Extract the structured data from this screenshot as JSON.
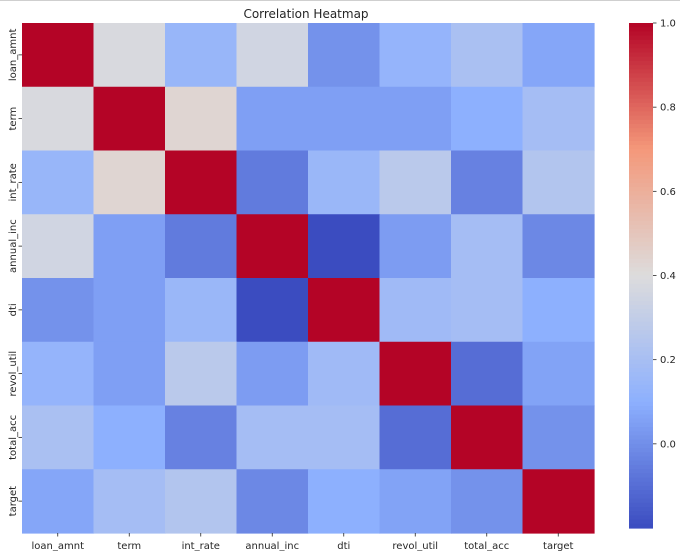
{
  "chart_data": {
    "type": "heatmap",
    "title": "Correlation Heatmap",
    "xlabel": "",
    "ylabel": "",
    "row_labels": [
      "loan_amnt",
      "term",
      "int_rate",
      "annual_inc",
      "dti",
      "revol_util",
      "total_acc",
      "target"
    ],
    "col_labels": [
      "loan_amnt",
      "term",
      "int_rate",
      "annual_inc",
      "dti",
      "revol_util",
      "total_acc",
      "target"
    ],
    "values": [
      [
        1.0,
        0.38,
        0.14,
        0.35,
        0.01,
        0.13,
        0.21,
        0.07
      ],
      [
        0.38,
        1.0,
        0.43,
        0.05,
        0.05,
        0.05,
        0.1,
        0.19
      ],
      [
        0.14,
        0.43,
        1.0,
        -0.06,
        0.15,
        0.27,
        -0.04,
        0.24
      ],
      [
        0.35,
        0.05,
        -0.06,
        1.0,
        -0.2,
        0.04,
        0.19,
        -0.02
      ],
      [
        0.01,
        0.05,
        0.15,
        -0.2,
        1.0,
        0.17,
        0.19,
        0.1
      ],
      [
        0.13,
        0.05,
        0.27,
        0.04,
        0.17,
        1.0,
        -0.1,
        0.06
      ],
      [
        0.21,
        0.1,
        -0.04,
        0.19,
        0.19,
        -0.1,
        1.0,
        0.01
      ],
      [
        0.07,
        0.19,
        0.24,
        -0.02,
        0.1,
        0.06,
        0.01,
        1.0
      ]
    ],
    "colorbar": {
      "colormap": "coolwarm",
      "vmin": -0.2,
      "vmax": 1.0,
      "ticks": [
        0.0,
        0.2,
        0.4,
        0.6,
        0.8,
        1.0
      ],
      "tick_labels": [
        "0.0",
        "0.2",
        "0.4",
        "0.6",
        "0.8",
        "1.0"
      ]
    }
  }
}
